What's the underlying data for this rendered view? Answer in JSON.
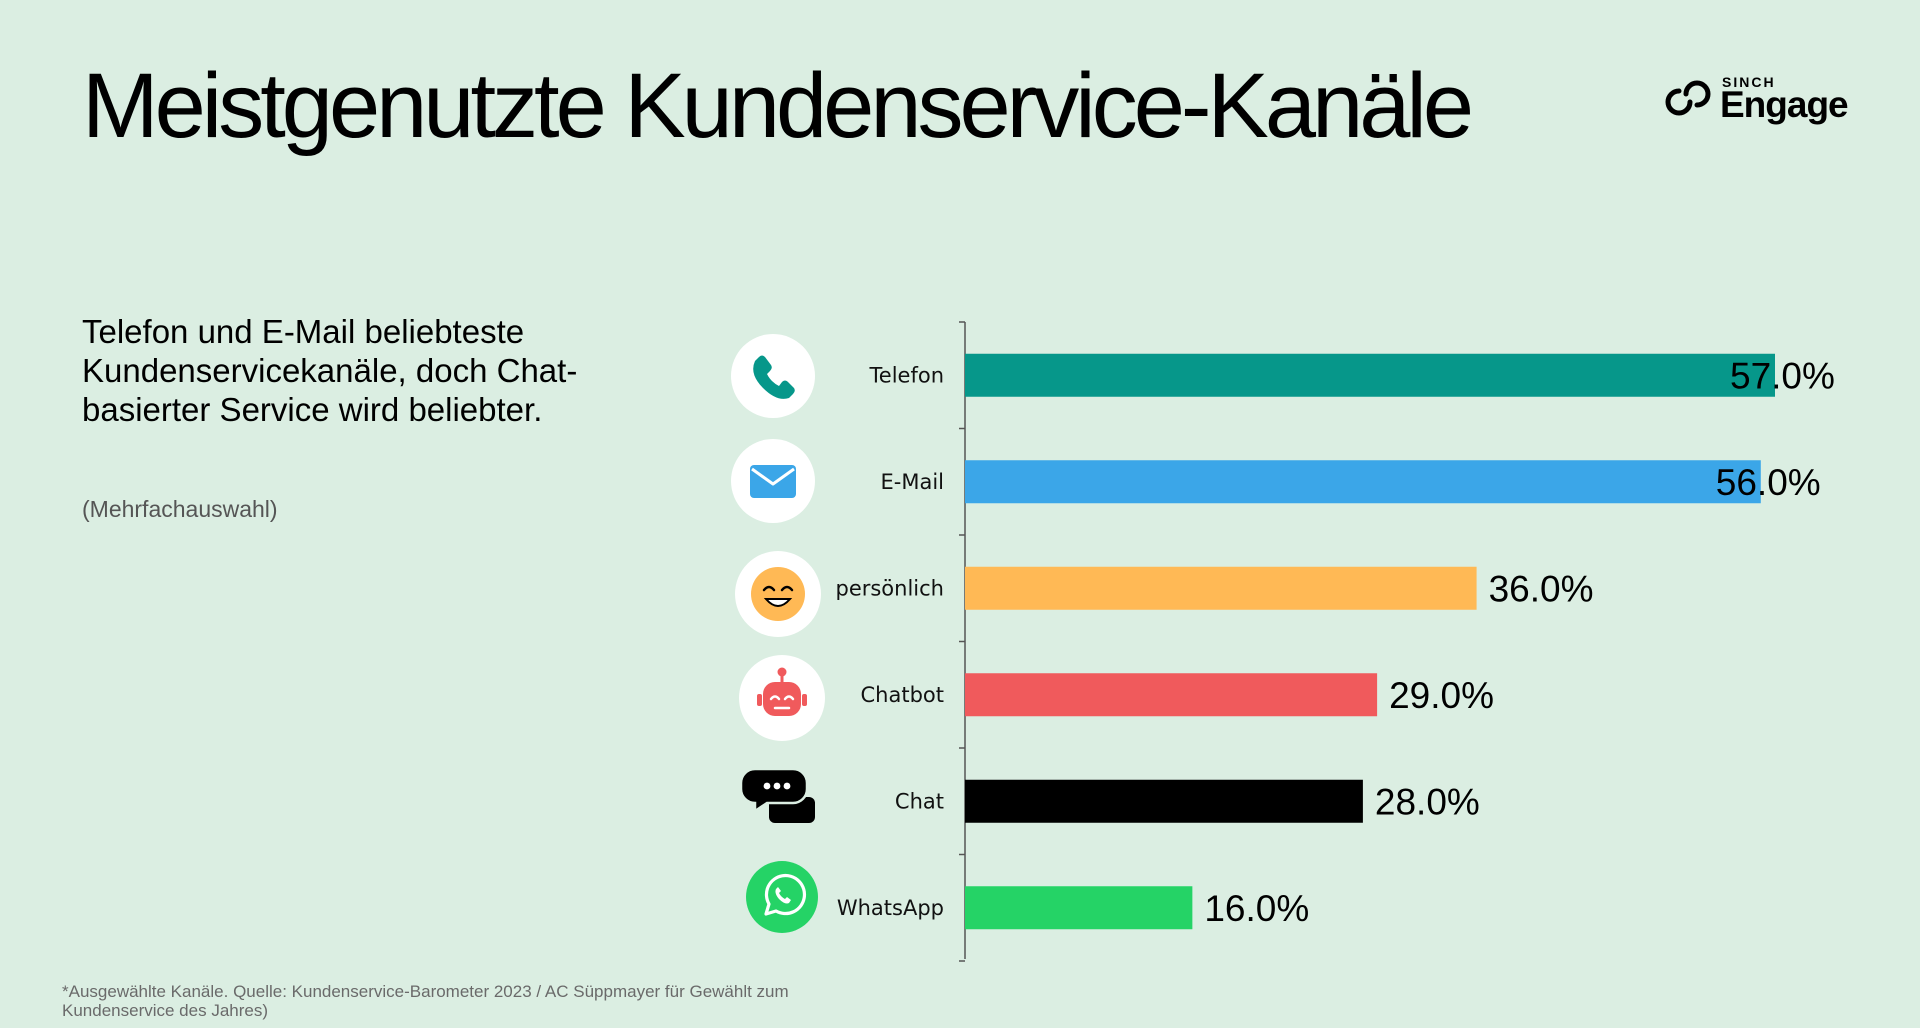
{
  "title": "Meistgenutzte Kundenservice-Kanäle",
  "logo": {
    "brand": "SINCH",
    "product": "Engage"
  },
  "headline": "Telefon und E-Mail beliebteste Kundenservicekanäle, doch Chat-basierter Service wird beliebter.",
  "note": "(Mehrfachauswahl)",
  "footnote": "*Ausgewählte Kanäle. Quelle: Kundenservice-Barometer 2023 / AC Süppmayer für Gewählt zum Kundenservice des Jahres)",
  "chart_data": {
    "type": "bar",
    "orientation": "horizontal",
    "categories": [
      "Telefon",
      "E-Mail",
      "persönlich",
      "Chatbot",
      "Chat",
      "WhatsApp"
    ],
    "values": [
      57.0,
      56.0,
      36.0,
      29.0,
      28.0,
      16.0
    ],
    "value_labels": [
      "57.0%",
      "56.0%",
      "36.0%",
      "29.0%",
      "28.0%",
      "16.0%"
    ],
    "unit": "%",
    "icons": [
      "phone-icon",
      "email-icon",
      "smiley-icon",
      "robot-icon",
      "chat-bubbles-icon",
      "whatsapp-icon"
    ],
    "colors": [
      "#06978a",
      "#3ba6e8",
      "#ffb955",
      "#f05a5c",
      "#000000",
      "#25d366"
    ],
    "xlim": [
      0,
      57
    ],
    "grid": false,
    "legend": "none"
  },
  "colors": {
    "background": "#dbeee2",
    "axis": "#555555",
    "icon_circle": "#ffffff"
  }
}
